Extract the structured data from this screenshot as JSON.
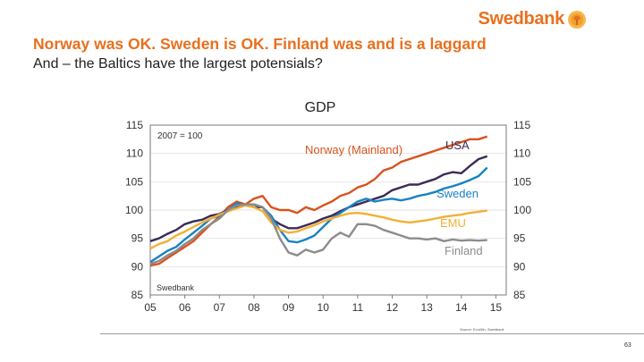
{
  "brand": {
    "name": "Swedbank",
    "accent": "#e8701e"
  },
  "slide": {
    "title": "Norway was OK. Sweden is OK. Finland was and is a laggard",
    "subtitle": "And – the Baltics have the largest potensials?",
    "source": "Source: EcoWin, Swedbank",
    "page_number": "63"
  },
  "chart_data": {
    "type": "line",
    "title": "GDP",
    "base_note": "2007 = 100",
    "watermark": "Swedbank",
    "xlabel": "",
    "ylabel": "",
    "xlim": [
      2005,
      2015.3
    ],
    "ylim": [
      85,
      115
    ],
    "x_ticks": [
      {
        "x": 2005.0,
        "label": "05"
      },
      {
        "x": 2006.0,
        "label": "06"
      },
      {
        "x": 2007.0,
        "label": "07"
      },
      {
        "x": 2008.0,
        "label": "08"
      },
      {
        "x": 2009.0,
        "label": "09"
      },
      {
        "x": 2010.0,
        "label": "10"
      },
      {
        "x": 2011.0,
        "label": "11"
      },
      {
        "x": 2012.0,
        "label": "12"
      },
      {
        "x": 2013.0,
        "label": "13"
      },
      {
        "x": 2014.0,
        "label": "14"
      },
      {
        "x": 2015.0,
        "label": "15"
      }
    ],
    "y_ticks": [
      85,
      90,
      95,
      100,
      105,
      110,
      115
    ],
    "grid": true,
    "series": [
      {
        "name": "Norway (Mainland)",
        "color": "#d9531e",
        "points": [
          [
            2005.0,
            90.2
          ],
          [
            2005.25,
            90.5
          ],
          [
            2005.5,
            91.5
          ],
          [
            2005.75,
            92.5
          ],
          [
            2006.0,
            93.5
          ],
          [
            2006.25,
            94.5
          ],
          [
            2006.5,
            96.0
          ],
          [
            2006.75,
            97.5
          ],
          [
            2007.0,
            98.8
          ],
          [
            2007.25,
            100.5
          ],
          [
            2007.5,
            101.5
          ],
          [
            2007.75,
            101.0
          ],
          [
            2008.0,
            102.0
          ],
          [
            2008.25,
            102.5
          ],
          [
            2008.5,
            100.5
          ],
          [
            2008.75,
            100.0
          ],
          [
            2009.0,
            100.0
          ],
          [
            2009.25,
            99.5
          ],
          [
            2009.5,
            100.5
          ],
          [
            2009.75,
            100.0
          ],
          [
            2010.0,
            100.8
          ],
          [
            2010.25,
            101.5
          ],
          [
            2010.5,
            102.5
          ],
          [
            2010.75,
            103.0
          ],
          [
            2011.0,
            104.0
          ],
          [
            2011.25,
            104.5
          ],
          [
            2011.5,
            105.5
          ],
          [
            2011.75,
            107.0
          ],
          [
            2012.0,
            107.5
          ],
          [
            2012.25,
            108.5
          ],
          [
            2012.5,
            109.0
          ],
          [
            2012.75,
            109.5
          ],
          [
            2013.0,
            110.0
          ],
          [
            2013.25,
            110.5
          ],
          [
            2013.5,
            111.0
          ],
          [
            2013.75,
            111.5
          ],
          [
            2014.0,
            112.0
          ],
          [
            2014.25,
            112.5
          ],
          [
            2014.5,
            112.5
          ],
          [
            2014.75,
            113.0
          ]
        ]
      },
      {
        "name": "USA",
        "color": "#3d2a55",
        "points": [
          [
            2005.0,
            94.5
          ],
          [
            2005.25,
            95.0
          ],
          [
            2005.5,
            95.8
          ],
          [
            2005.75,
            96.5
          ],
          [
            2006.0,
            97.5
          ],
          [
            2006.25,
            98.0
          ],
          [
            2006.5,
            98.3
          ],
          [
            2006.75,
            99.0
          ],
          [
            2007.0,
            99.3
          ],
          [
            2007.25,
            100.0
          ],
          [
            2007.5,
            100.5
          ],
          [
            2007.75,
            101.0
          ],
          [
            2008.0,
            100.5
          ],
          [
            2008.25,
            100.5
          ],
          [
            2008.5,
            98.5
          ],
          [
            2008.75,
            97.5
          ],
          [
            2009.0,
            96.8
          ],
          [
            2009.25,
            96.8
          ],
          [
            2009.5,
            97.3
          ],
          [
            2009.75,
            97.8
          ],
          [
            2010.0,
            98.5
          ],
          [
            2010.25,
            99.0
          ],
          [
            2010.5,
            99.8
          ],
          [
            2010.75,
            100.5
          ],
          [
            2011.0,
            101.0
          ],
          [
            2011.25,
            101.5
          ],
          [
            2011.5,
            102.0
          ],
          [
            2011.75,
            102.5
          ],
          [
            2012.0,
            103.5
          ],
          [
            2012.25,
            104.0
          ],
          [
            2012.5,
            104.5
          ],
          [
            2012.75,
            104.5
          ],
          [
            2013.0,
            105.0
          ],
          [
            2013.25,
            105.5
          ],
          [
            2013.5,
            106.3
          ],
          [
            2013.75,
            106.7
          ],
          [
            2014.0,
            106.5
          ],
          [
            2014.25,
            107.8
          ],
          [
            2014.5,
            109.0
          ],
          [
            2014.75,
            109.5
          ]
        ]
      },
      {
        "name": "Sweden",
        "color": "#1a82c4",
        "points": [
          [
            2005.0,
            90.8
          ],
          [
            2005.25,
            91.8
          ],
          [
            2005.5,
            92.8
          ],
          [
            2005.75,
            93.5
          ],
          [
            2006.0,
            94.8
          ],
          [
            2006.25,
            96.0
          ],
          [
            2006.5,
            97.2
          ],
          [
            2006.75,
            98.5
          ],
          [
            2007.0,
            99.0
          ],
          [
            2007.25,
            100.0
          ],
          [
            2007.5,
            101.2
          ],
          [
            2007.75,
            100.8
          ],
          [
            2008.0,
            101.0
          ],
          [
            2008.25,
            100.5
          ],
          [
            2008.5,
            99.0
          ],
          [
            2008.75,
            96.5
          ],
          [
            2009.0,
            94.5
          ],
          [
            2009.25,
            94.3
          ],
          [
            2009.5,
            94.8
          ],
          [
            2009.75,
            95.5
          ],
          [
            2010.0,
            97.0
          ],
          [
            2010.25,
            98.5
          ],
          [
            2010.5,
            99.5
          ],
          [
            2010.75,
            100.5
          ],
          [
            2011.0,
            101.5
          ],
          [
            2011.25,
            102.0
          ],
          [
            2011.5,
            101.5
          ],
          [
            2011.75,
            101.8
          ],
          [
            2012.0,
            102.0
          ],
          [
            2012.25,
            101.7
          ],
          [
            2012.5,
            102.0
          ],
          [
            2012.75,
            102.5
          ],
          [
            2013.0,
            102.8
          ],
          [
            2013.25,
            103.2
          ],
          [
            2013.5,
            103.8
          ],
          [
            2013.75,
            104.2
          ],
          [
            2014.0,
            104.7
          ],
          [
            2014.25,
            105.3
          ],
          [
            2014.5,
            106.0
          ],
          [
            2014.75,
            107.5
          ]
        ]
      },
      {
        "name": "EMU",
        "color": "#f2b035",
        "points": [
          [
            2005.0,
            93.2
          ],
          [
            2005.25,
            94.0
          ],
          [
            2005.5,
            94.5
          ],
          [
            2005.75,
            95.5
          ],
          [
            2006.0,
            96.2
          ],
          [
            2006.25,
            97.0
          ],
          [
            2006.5,
            97.8
          ],
          [
            2006.75,
            98.5
          ],
          [
            2007.0,
            99.2
          ],
          [
            2007.25,
            99.8
          ],
          [
            2007.5,
            100.3
          ],
          [
            2007.75,
            100.8
          ],
          [
            2008.0,
            100.5
          ],
          [
            2008.25,
            99.8
          ],
          [
            2008.5,
            97.8
          ],
          [
            2008.75,
            96.5
          ],
          [
            2009.0,
            96.0
          ],
          [
            2009.25,
            96.2
          ],
          [
            2009.5,
            96.8
          ],
          [
            2009.75,
            97.3
          ],
          [
            2010.0,
            98.0
          ],
          [
            2010.25,
            98.5
          ],
          [
            2010.5,
            99.0
          ],
          [
            2010.75,
            99.4
          ],
          [
            2011.0,
            99.5
          ],
          [
            2011.25,
            99.3
          ],
          [
            2011.5,
            99.0
          ],
          [
            2011.75,
            98.7
          ],
          [
            2012.0,
            98.3
          ],
          [
            2012.25,
            98.0
          ],
          [
            2012.5,
            97.8
          ],
          [
            2012.75,
            98.0
          ],
          [
            2013.0,
            98.2
          ],
          [
            2013.25,
            98.5
          ],
          [
            2013.5,
            98.8
          ],
          [
            2013.75,
            99.0
          ],
          [
            2014.0,
            99.2
          ],
          [
            2014.25,
            99.5
          ],
          [
            2014.5,
            99.7
          ],
          [
            2014.75,
            99.9
          ]
        ]
      },
      {
        "name": "Finland",
        "color": "#8c8c8c",
        "points": [
          [
            2005.0,
            90.5
          ],
          [
            2005.25,
            91.0
          ],
          [
            2005.5,
            92.0
          ],
          [
            2005.75,
            92.8
          ],
          [
            2006.0,
            94.0
          ],
          [
            2006.25,
            95.0
          ],
          [
            2006.5,
            96.5
          ],
          [
            2006.75,
            97.5
          ],
          [
            2007.0,
            98.5
          ],
          [
            2007.25,
            100.0
          ],
          [
            2007.5,
            100.8
          ],
          [
            2007.75,
            101.0
          ],
          [
            2008.0,
            101.0
          ],
          [
            2008.25,
            100.5
          ],
          [
            2008.5,
            98.5
          ],
          [
            2008.75,
            95.0
          ],
          [
            2009.0,
            92.5
          ],
          [
            2009.25,
            92.0
          ],
          [
            2009.5,
            93.0
          ],
          [
            2009.75,
            92.5
          ],
          [
            2010.0,
            93.0
          ],
          [
            2010.25,
            95.0
          ],
          [
            2010.5,
            96.0
          ],
          [
            2010.75,
            95.3
          ],
          [
            2011.0,
            97.5
          ],
          [
            2011.25,
            97.5
          ],
          [
            2011.5,
            97.2
          ],
          [
            2011.75,
            96.5
          ],
          [
            2012.0,
            96.0
          ],
          [
            2012.25,
            95.5
          ],
          [
            2012.5,
            95.0
          ],
          [
            2012.75,
            95.0
          ],
          [
            2013.0,
            94.8
          ],
          [
            2013.25,
            95.0
          ],
          [
            2013.5,
            94.5
          ],
          [
            2013.75,
            94.8
          ],
          [
            2014.0,
            94.6
          ],
          [
            2014.25,
            94.7
          ],
          [
            2014.5,
            94.6
          ],
          [
            2014.75,
            94.7
          ]
        ]
      }
    ],
    "labels": [
      {
        "series": "Norway (Mainland)",
        "text": "Norway (Mainland)"
      },
      {
        "series": "USA",
        "text": "USA"
      },
      {
        "series": "Sweden",
        "text": "Sweden"
      },
      {
        "series": "EMU",
        "text": "EMU"
      },
      {
        "series": "Finland",
        "text": "Finland"
      }
    ]
  }
}
